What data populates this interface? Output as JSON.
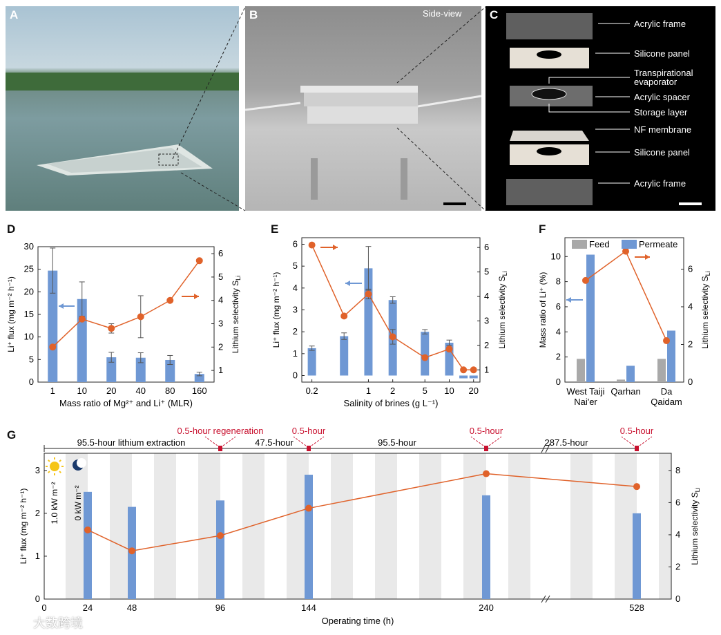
{
  "panels": {
    "A": {
      "label": "A"
    },
    "B": {
      "label": "B",
      "caption": "Side-view"
    },
    "C": {
      "label": "C",
      "parts": [
        "Acrylic frame",
        "Silicone panel",
        "Transpirational evaporator",
        "Acrylic spacer",
        "Storage layer",
        "NF membrane",
        "Silicone panel",
        "Acrylic frame"
      ]
    },
    "D": {
      "label": "D"
    },
    "E": {
      "label": "E"
    },
    "F": {
      "label": "F"
    },
    "G": {
      "label": "G"
    }
  },
  "watermark": "大数跨境",
  "colors": {
    "bar": "#6f98d4",
    "line": "#e0622a",
    "feed": "#a9a9a9",
    "arrow_blue": "#6f98d4",
    "arrow_orange": "#e0622a",
    "red_text": "#c8102e",
    "stripe": "#e9e9e9"
  },
  "chart_data": [
    {
      "id": "D",
      "type": "bar",
      "categories": [
        "1",
        "10",
        "20",
        "40",
        "80",
        "160"
      ],
      "series": [
        {
          "name": "Li+ flux",
          "axis": "left",
          "values": [
            24.7,
            18.4,
            5.5,
            5.4,
            4.9,
            1.8
          ],
          "errors": [
            5.0,
            3.8,
            1.1,
            1.1,
            1.0,
            0.4
          ]
        },
        {
          "name": "Lithium selectivity",
          "axis": "right",
          "type": "line",
          "values": [
            2.0,
            3.2,
            2.8,
            3.3,
            4.0,
            5.7
          ],
          "errors": [
            0,
            0,
            0.2,
            0.9,
            0,
            0
          ]
        }
      ],
      "xlabel": "Mass ratio of Mg²⁺ and Li⁺ (MLR)",
      "ylabel": "Li⁺ flux (mg m⁻² h⁻¹)",
      "y2label": "Lithium selectivity S",
      "y2sub": "Li",
      "ylim": [
        0,
        30
      ],
      "yticks": [
        "0",
        "5",
        "10",
        "15",
        "20",
        "25",
        "30"
      ],
      "y2lim": [
        0.5,
        6.3
      ],
      "y2ticks": [
        "1",
        "2",
        "3",
        "4",
        "5",
        "6"
      ]
    },
    {
      "id": "E",
      "type": "bar",
      "xscale": "log",
      "x": [
        0.2,
        0.5,
        1,
        2,
        5,
        10,
        15,
        20
      ],
      "xticks": [
        "0.2",
        "1",
        "2",
        "5",
        "10",
        "20"
      ],
      "xtick_values": [
        0.2,
        1,
        2,
        5,
        10,
        20
      ],
      "series": [
        {
          "name": "Li+ flux",
          "axis": "left",
          "values": [
            1.25,
            1.8,
            4.9,
            3.45,
            2.0,
            1.5,
            0,
            0
          ],
          "errors": [
            0.1,
            0.15,
            1.0,
            0.15,
            0.1,
            0.12,
            0,
            0
          ]
        },
        {
          "name": "Lithium selectivity",
          "axis": "right",
          "type": "line",
          "values": [
            6.1,
            3.2,
            4.1,
            2.35,
            1.5,
            1.85,
            1.0,
            1.0
          ],
          "errors": [
            0,
            0,
            0.2,
            0.3,
            0,
            0,
            0,
            0
          ]
        }
      ],
      "xlabel": "Salinity of brines (g L⁻¹)",
      "ylabel": "Li⁺ flux (mg m⁻² h⁻¹)",
      "y2label": "Lithium selectivity S",
      "y2sub": "Li",
      "ylim": [
        -0.3,
        6.3
      ],
      "yticks": [
        "0",
        "1",
        "2",
        "3",
        "4",
        "5",
        "6"
      ],
      "y2lim": [
        0.5,
        6.4
      ],
      "y2ticks": [
        "1",
        "2",
        "3",
        "4",
        "5",
        "6"
      ]
    },
    {
      "id": "F",
      "type": "bar",
      "categories": [
        "West Taiji Nai'er",
        "Qarhan",
        "Da Qaidam"
      ],
      "category_lines": [
        [
          "West Taiji",
          "Nai'er"
        ],
        [
          "Qarhan"
        ],
        [
          "Da",
          "Qaidam"
        ]
      ],
      "series": [
        {
          "name": "Feed",
          "axis": "left",
          "values": [
            1.85,
            0.2,
            1.85
          ]
        },
        {
          "name": "Permeate",
          "axis": "left",
          "values": [
            10.15,
            1.3,
            4.1
          ]
        },
        {
          "name": "Lithium selectivity",
          "axis": "right",
          "type": "line",
          "values": [
            5.4,
            6.95,
            2.2
          ]
        }
      ],
      "legend": [
        "Feed",
        "Permeate"
      ],
      "ylabel": "Mass ratio of Li⁺ (%)",
      "y2label": "Lithium selectivity S",
      "y2sub": "Li",
      "ylim": [
        0,
        11.5
      ],
      "yticks": [
        "0",
        "2",
        "4",
        "6",
        "8",
        "10"
      ],
      "y2lim": [
        0,
        7.67
      ],
      "y2ticks": [
        "0",
        "2",
        "4",
        "6"
      ]
    },
    {
      "id": "G",
      "type": "bar",
      "x": [
        24,
        48,
        96,
        144,
        240,
        528
      ],
      "xticks": [
        "0",
        "24",
        "48",
        "96",
        "144",
        "240",
        "528"
      ],
      "series": [
        {
          "name": "Li+ flux",
          "axis": "left",
          "values": [
            2.5,
            2.15,
            2.3,
            2.9,
            2.42,
            2.0
          ]
        },
        {
          "name": "Lithium selectivity",
          "axis": "right",
          "type": "line",
          "values": [
            4.3,
            3.0,
            3.95,
            5.65,
            7.8,
            7.0
          ]
        }
      ],
      "xlabel": "Operating time (h)",
      "ylabel": "Li⁺ flux (mg m⁻² h⁻¹)",
      "y2label": "Lithium selectivity S",
      "y2sub": "Li",
      "ylim": [
        0,
        3.4
      ],
      "yticks": [
        "0",
        "1",
        "2",
        "3"
      ],
      "y2lim": [
        0,
        9.07
      ],
      "y2ticks": [
        "0",
        "2",
        "4",
        "6",
        "8"
      ],
      "light_on": "1.0 kW m⁻²",
      "light_off": "0 kW m⁻²",
      "segments": [
        "95.5-hour lithium extraction",
        "47.5-hour",
        "95.5-hour",
        "287.5-hour"
      ],
      "regen_labels": [
        "0.5-hour regeneration",
        "0.5-hour",
        "0.5-hour",
        "0.5-hour"
      ]
    }
  ]
}
